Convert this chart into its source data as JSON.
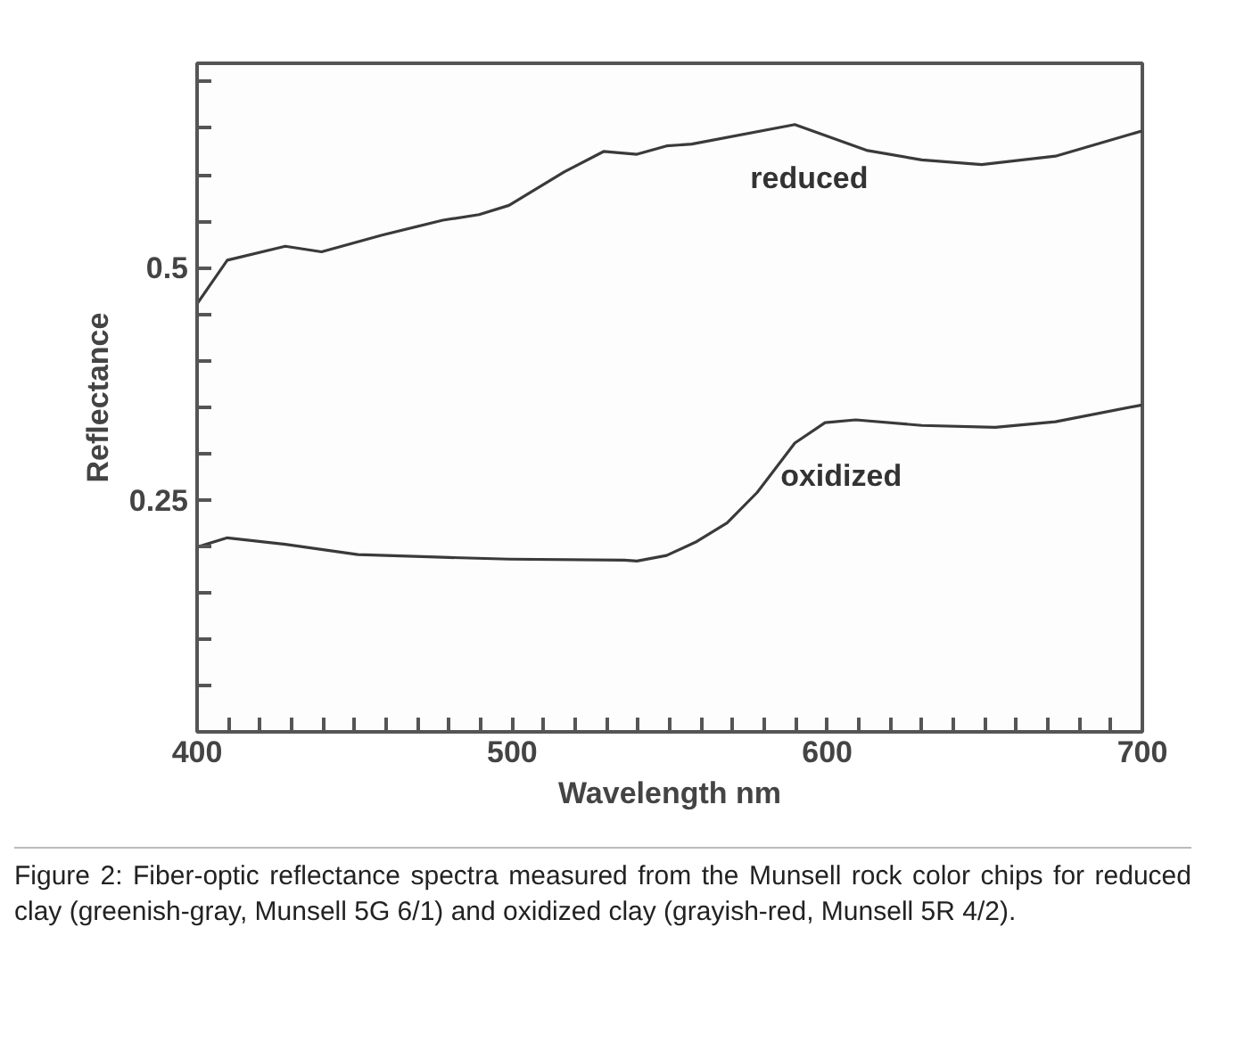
{
  "chart_data": {
    "type": "line",
    "xlabel": "Wavelength nm",
    "ylabel": "Reflectance",
    "xlim": [
      400,
      700
    ],
    "ylim": [
      0,
      0.72
    ],
    "xticks": [
      400,
      {
        "value": 410,
        "label": null
      },
      {
        "value": 420,
        "label": null
      },
      {
        "value": 430,
        "label": null
      },
      {
        "value": 440,
        "label": null
      },
      {
        "value": 450,
        "label": null
      },
      {
        "value": 460,
        "label": null
      },
      {
        "value": 470,
        "label": null
      },
      {
        "value": 480,
        "label": null
      },
      {
        "value": 490,
        "label": null
      },
      500,
      {
        "value": 510,
        "label": null
      },
      {
        "value": 520,
        "label": null
      },
      {
        "value": 530,
        "label": null
      },
      {
        "value": 540,
        "label": null
      },
      {
        "value": 550,
        "label": null
      },
      {
        "value": 560,
        "label": null
      },
      {
        "value": 570,
        "label": null
      },
      {
        "value": 580,
        "label": null
      },
      {
        "value": 590,
        "label": null
      },
      600,
      {
        "value": 610,
        "label": null
      },
      {
        "value": 620,
        "label": null
      },
      {
        "value": 630,
        "label": null
      },
      {
        "value": 640,
        "label": null
      },
      {
        "value": 650,
        "label": null
      },
      {
        "value": 660,
        "label": null
      },
      {
        "value": 670,
        "label": null
      },
      {
        "value": 680,
        "label": null
      },
      {
        "value": 690,
        "label": null
      },
      700
    ],
    "yticks": [
      {
        "value": 0.05,
        "label": null
      },
      {
        "value": 0.1,
        "label": null
      },
      {
        "value": 0.15,
        "label": null
      },
      {
        "value": 0.2,
        "label": null
      },
      0.25,
      {
        "value": 0.3,
        "label": null
      },
      {
        "value": 0.35,
        "label": null
      },
      {
        "value": 0.4,
        "label": null
      },
      {
        "value": 0.45,
        "label": null
      },
      0.5,
      {
        "value": 0.55,
        "label": null
      },
      {
        "value": 0.6,
        "label": null
      },
      {
        "value": 0.65,
        "label": null
      },
      {
        "value": 0.7,
        "label": null
      }
    ],
    "grid": false,
    "legend": false,
    "series": [
      {
        "name": "reduced",
        "color": "#3a3a3a",
        "x": [
          400,
          409.6,
          428,
          439.5,
          458.7,
          478,
          489.5,
          499,
          516.5,
          529,
          539.6,
          549,
          557,
          589.7,
          612.8,
          630,
          649,
          672.4,
          699.8
        ],
        "values": [
          0.461,
          0.508,
          0.523,
          0.517,
          0.535,
          0.551,
          0.557,
          0.567,
          0.603,
          0.625,
          0.622,
          0.631,
          0.633,
          0.654,
          0.626,
          0.616,
          0.611,
          0.62,
          0.647
        ]
      },
      {
        "name": "oxidized",
        "color": "#3a3a3a",
        "x": [
          400,
          409.6,
          428,
          451,
          478,
          499,
          535.6,
          539.6,
          549,
          558.6,
          568.2,
          577.8,
          589.7,
          599.3,
          609,
          630,
          653.3,
          672.4,
          699.8
        ],
        "values": [
          0.199,
          0.209,
          0.202,
          0.191,
          0.188,
          0.186,
          0.185,
          0.184,
          0.19,
          0.205,
          0.225,
          0.258,
          0.311,
          0.333,
          0.336,
          0.33,
          0.328,
          0.334,
          0.352
        ]
      }
    ],
    "annotations": [
      "Figure 2: Fiber-optic reflectance spectra measured from the Munsell rock color chips for reduced clay (greenish-gray, Munsell 5G 6/1) and oxidized clay (grayish-red, Munsell 5R 4/2)."
    ]
  }
}
